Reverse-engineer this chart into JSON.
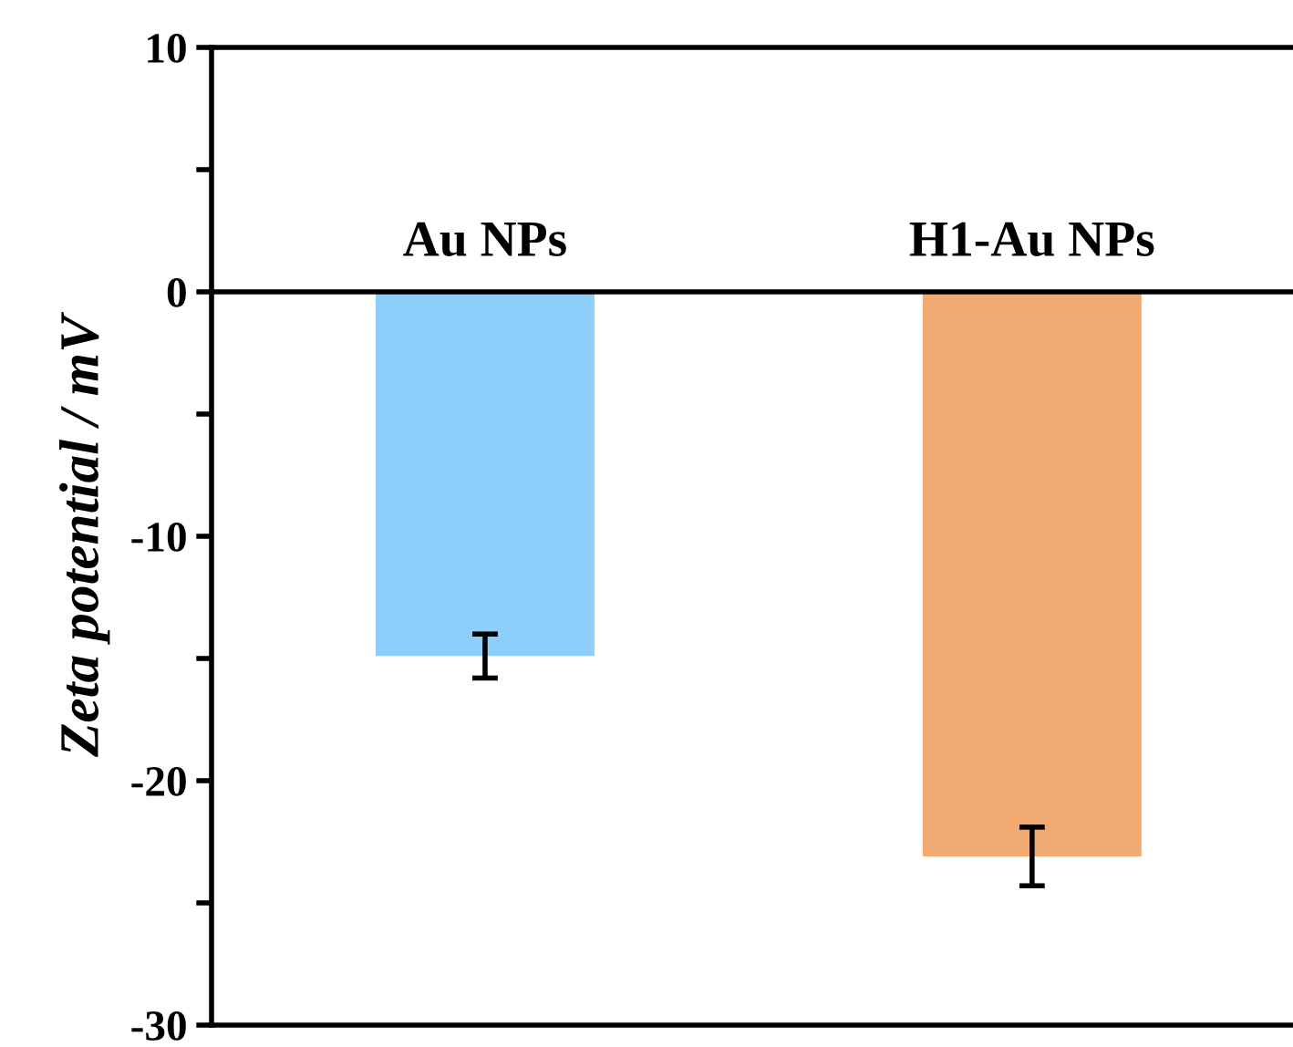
{
  "chart_data": {
    "type": "bar",
    "categories": [
      "Au NPs",
      "H1-Au NPs"
    ],
    "values": [
      -14.9,
      -23.1
    ],
    "errors": [
      0.9,
      1.2
    ],
    "colors": [
      "#8dcffa",
      "#f0aa72"
    ],
    "ylabel": "Zeta potential / mV",
    "ylim": [
      -30,
      10
    ],
    "yticks": [
      -30,
      {
        "value": -25,
        "label": null
      },
      -20,
      {
        "value": -15,
        "label": null
      },
      -10,
      {
        "value": -5,
        "label": null
      },
      0,
      {
        "value": 5,
        "label": null
      },
      10
    ],
    "grid": false,
    "legend": false
  }
}
